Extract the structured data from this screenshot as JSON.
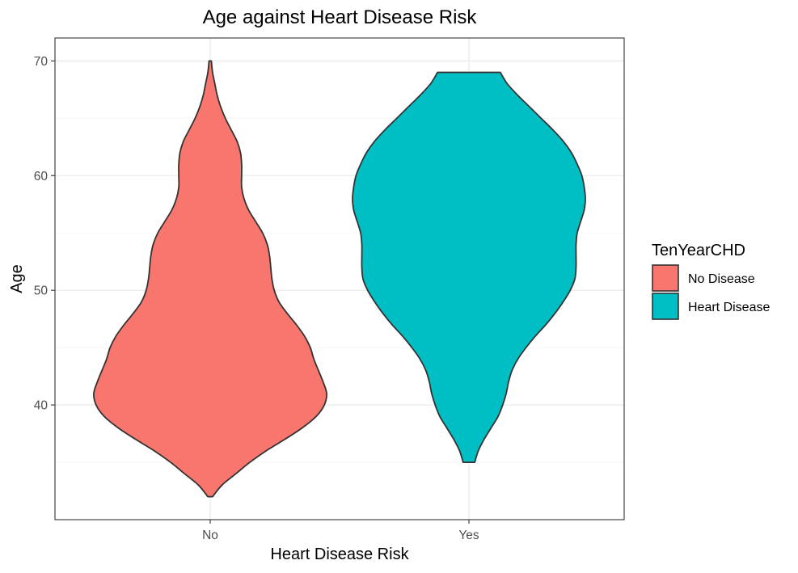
{
  "chart_data": {
    "type": "violin",
    "title": "Age against Heart Disease Risk",
    "xlabel": "Heart Disease Risk",
    "ylabel": "Age",
    "categories": [
      "No",
      "Yes"
    ],
    "ylim": [
      30,
      72
    ],
    "yticks": [
      40,
      50,
      60,
      70
    ],
    "grid": true,
    "legend": {
      "title": "TenYearCHD",
      "position": "right",
      "entries": [
        {
          "label": "No Disease",
          "color": "#F8766D"
        },
        {
          "label": "Heart Disease",
          "color": "#00BFC4"
        }
      ]
    },
    "series": [
      {
        "category": "No",
        "legend_label": "No Disease",
        "color": "#F8766D",
        "min": 32,
        "max": 70,
        "density_profile": [
          {
            "age": 32,
            "width": 0.02
          },
          {
            "age": 33,
            "width": 0.1
          },
          {
            "age": 34,
            "width": 0.22
          },
          {
            "age": 35,
            "width": 0.34
          },
          {
            "age": 36,
            "width": 0.48
          },
          {
            "age": 37,
            "width": 0.64
          },
          {
            "age": 38,
            "width": 0.79
          },
          {
            "age": 39,
            "width": 0.91
          },
          {
            "age": 40,
            "width": 0.98
          },
          {
            "age": 41,
            "width": 1.0
          },
          {
            "age": 42,
            "width": 0.97
          },
          {
            "age": 43,
            "width": 0.93
          },
          {
            "age": 44,
            "width": 0.89
          },
          {
            "age": 45,
            "width": 0.86
          },
          {
            "age": 46,
            "width": 0.81
          },
          {
            "age": 47,
            "width": 0.74
          },
          {
            "age": 48,
            "width": 0.66
          },
          {
            "age": 49,
            "width": 0.59
          },
          {
            "age": 50,
            "width": 0.55
          },
          {
            "age": 51,
            "width": 0.53
          },
          {
            "age": 52,
            "width": 0.52
          },
          {
            "age": 53,
            "width": 0.51
          },
          {
            "age": 54,
            "width": 0.49
          },
          {
            "age": 55,
            "width": 0.45
          },
          {
            "age": 56,
            "width": 0.39
          },
          {
            "age": 57,
            "width": 0.33
          },
          {
            "age": 58,
            "width": 0.29
          },
          {
            "age": 59,
            "width": 0.27
          },
          {
            "age": 60,
            "width": 0.27
          },
          {
            "age": 61,
            "width": 0.27
          },
          {
            "age": 62,
            "width": 0.26
          },
          {
            "age": 63,
            "width": 0.23
          },
          {
            "age": 64,
            "width": 0.18
          },
          {
            "age": 65,
            "width": 0.13
          },
          {
            "age": 66,
            "width": 0.09
          },
          {
            "age": 67,
            "width": 0.06
          },
          {
            "age": 68,
            "width": 0.04
          },
          {
            "age": 69,
            "width": 0.02
          },
          {
            "age": 70,
            "width": 0.01
          }
        ]
      },
      {
        "category": "Yes",
        "legend_label": "Heart Disease",
        "color": "#00BFC4",
        "min": 35,
        "max": 69,
        "density_profile": [
          {
            "age": 35,
            "width": 0.05
          },
          {
            "age": 36,
            "width": 0.08
          },
          {
            "age": 37,
            "width": 0.13
          },
          {
            "age": 38,
            "width": 0.19
          },
          {
            "age": 39,
            "width": 0.25
          },
          {
            "age": 40,
            "width": 0.29
          },
          {
            "age": 41,
            "width": 0.32
          },
          {
            "age": 42,
            "width": 0.34
          },
          {
            "age": 43,
            "width": 0.37
          },
          {
            "age": 44,
            "width": 0.42
          },
          {
            "age": 45,
            "width": 0.49
          },
          {
            "age": 46,
            "width": 0.57
          },
          {
            "age": 47,
            "width": 0.66
          },
          {
            "age": 48,
            "width": 0.74
          },
          {
            "age": 49,
            "width": 0.81
          },
          {
            "age": 50,
            "width": 0.87
          },
          {
            "age": 51,
            "width": 0.91
          },
          {
            "age": 52,
            "width": 0.92
          },
          {
            "age": 53,
            "width": 0.92
          },
          {
            "age": 54,
            "width": 0.92
          },
          {
            "age": 55,
            "width": 0.93
          },
          {
            "age": 56,
            "width": 0.96
          },
          {
            "age": 57,
            "width": 0.99
          },
          {
            "age": 58,
            "width": 1.0
          },
          {
            "age": 59,
            "width": 0.99
          },
          {
            "age": 60,
            "width": 0.97
          },
          {
            "age": 61,
            "width": 0.93
          },
          {
            "age": 62,
            "width": 0.88
          },
          {
            "age": 63,
            "width": 0.81
          },
          {
            "age": 64,
            "width": 0.72
          },
          {
            "age": 65,
            "width": 0.62
          },
          {
            "age": 66,
            "width": 0.52
          },
          {
            "age": 67,
            "width": 0.42
          },
          {
            "age": 68,
            "width": 0.33
          },
          {
            "age": 69,
            "width": 0.27
          }
        ]
      }
    ]
  }
}
